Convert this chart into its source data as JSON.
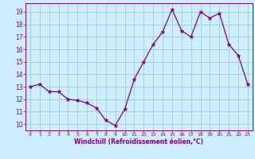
{
  "x": [
    0,
    1,
    2,
    3,
    4,
    5,
    6,
    7,
    8,
    9,
    10,
    11,
    12,
    13,
    14,
    15,
    16,
    17,
    18,
    19,
    20,
    21,
    22,
    23
  ],
  "y": [
    13.0,
    13.2,
    12.6,
    12.6,
    12.0,
    11.9,
    11.7,
    11.3,
    10.3,
    9.9,
    11.2,
    13.6,
    15.0,
    16.4,
    17.4,
    19.2,
    17.5,
    17.0,
    19.0,
    18.5,
    18.9,
    16.4,
    15.5,
    13.2
  ],
  "xlabel": "Windchill (Refroidissement éolien,°C)",
  "ylim": [
    9.5,
    19.7
  ],
  "xlim": [
    -0.5,
    23.5
  ],
  "yticks": [
    10,
    11,
    12,
    13,
    14,
    15,
    16,
    17,
    18,
    19
  ],
  "xticks": [
    0,
    1,
    2,
    3,
    4,
    5,
    6,
    7,
    8,
    9,
    10,
    11,
    12,
    13,
    14,
    15,
    16,
    17,
    18,
    19,
    20,
    21,
    22,
    23
  ],
  "line_color": "#800080",
  "marker": "*",
  "bg_color": "#cceeff",
  "grid_color": "#aacccc",
  "label_color": "#800080",
  "tick_color": "#800080"
}
